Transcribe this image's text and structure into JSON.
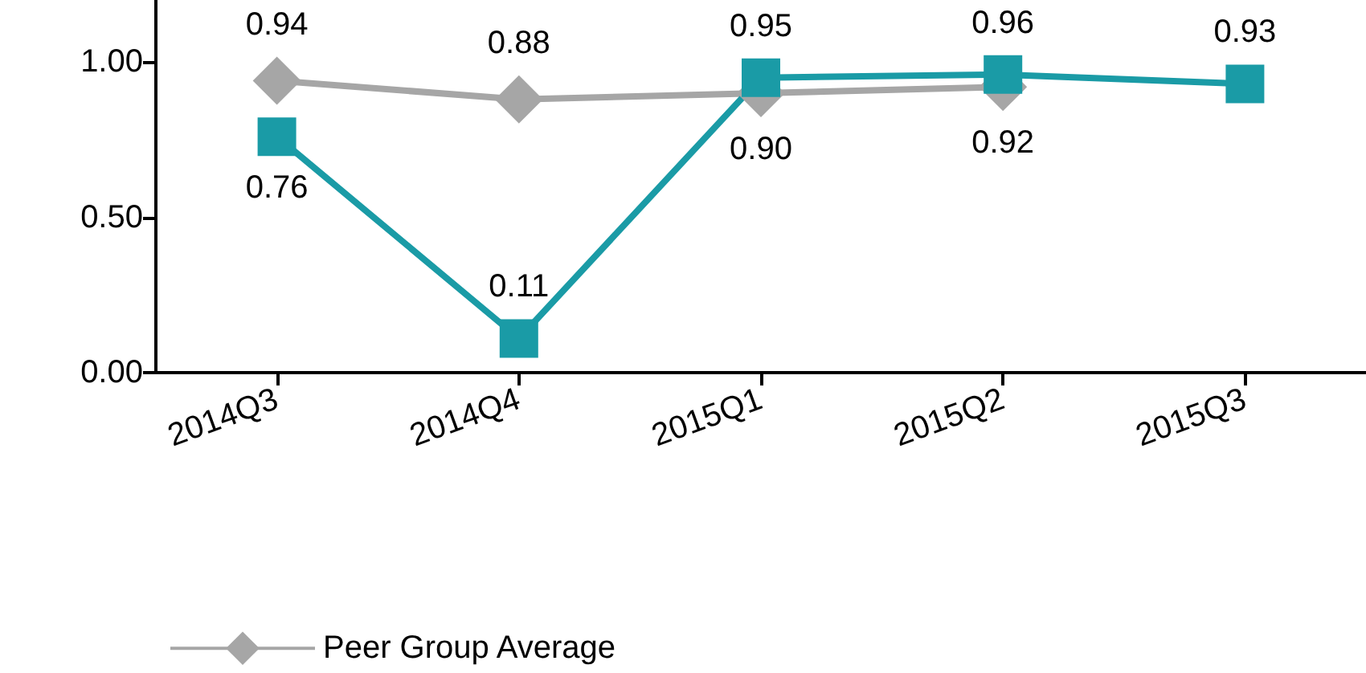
{
  "chart_data": {
    "type": "line",
    "categories": [
      "2014Q3",
      "2014Q4",
      "2015Q1",
      "2015Q2",
      "2015Q3"
    ],
    "series": [
      {
        "name": "Peer Group Average",
        "color": "#a6a6a6",
        "marker": "diamond",
        "values": [
          0.94,
          0.88,
          0.9,
          0.92,
          null
        ],
        "value_labels": [
          "0.94",
          "0.88",
          "0.90",
          "0.92",
          null
        ]
      },
      {
        "color": "#1a9ba6",
        "marker": "square",
        "values": [
          0.76,
          0.11,
          0.95,
          0.96,
          0.93
        ],
        "value_labels": [
          "0.76",
          "0.11",
          "0.95",
          "0.96",
          "0.93"
        ]
      }
    ],
    "ylim": [
      0,
      1.2
    ],
    "yticks": [
      {
        "value": 0,
        "label": "0.00"
      },
      {
        "value": 0.5,
        "label": "0.50"
      },
      {
        "value": 1,
        "label": "1.00"
      }
    ],
    "grid": false,
    "legend": "bottom"
  }
}
